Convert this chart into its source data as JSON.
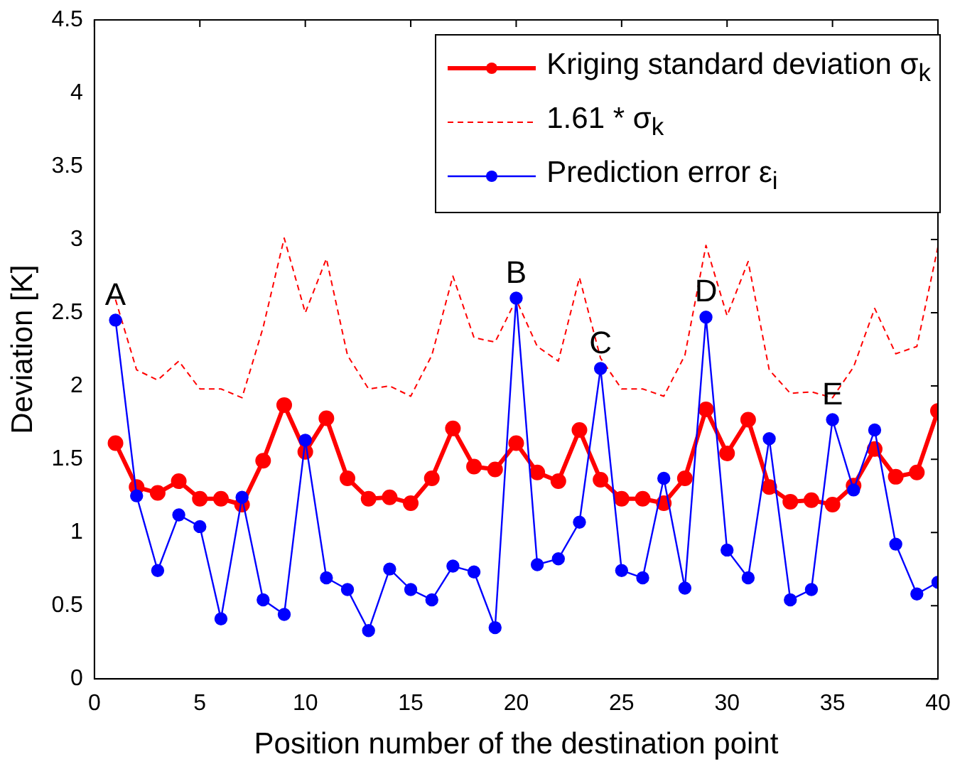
{
  "chart_data": {
    "type": "line",
    "xlabel": "Position number of the destination point",
    "ylabel": "Deviation [K]",
    "x": [
      1,
      2,
      3,
      4,
      5,
      6,
      7,
      8,
      9,
      10,
      11,
      12,
      13,
      14,
      15,
      16,
      17,
      18,
      19,
      20,
      21,
      22,
      23,
      24,
      25,
      26,
      27,
      28,
      29,
      30,
      31,
      32,
      33,
      34,
      35,
      36,
      37,
      38,
      39,
      40
    ],
    "series": [
      {
        "name": "Kriging standard deviation σ$_{k}$",
        "color": "#ff0000",
        "marker": "circle",
        "line_style": "solid",
        "values": [
          1.61,
          1.31,
          1.27,
          1.35,
          1.23,
          1.23,
          1.19,
          1.49,
          1.87,
          1.55,
          1.78,
          1.37,
          1.23,
          1.24,
          1.2,
          1.37,
          1.71,
          1.45,
          1.43,
          1.61,
          1.41,
          1.35,
          1.7,
          1.36,
          1.23,
          1.23,
          1.2,
          1.37,
          1.84,
          1.54,
          1.77,
          1.31,
          1.21,
          1.22,
          1.19,
          1.32,
          1.57,
          1.38,
          1.41,
          1.83
        ]
      },
      {
        "name": "1.61 * σ$_{k}$",
        "color": "#ff0000",
        "marker": "none",
        "line_style": "dashed",
        "values": [
          2.59,
          2.11,
          2.04,
          2.17,
          1.98,
          1.98,
          1.92,
          2.4,
          3.01,
          2.5,
          2.87,
          2.21,
          1.98,
          2.0,
          1.93,
          2.21,
          2.75,
          2.33,
          2.3,
          2.59,
          2.27,
          2.17,
          2.74,
          2.19,
          1.98,
          1.98,
          1.93,
          2.21,
          2.96,
          2.48,
          2.85,
          2.11,
          1.95,
          1.96,
          1.92,
          2.13,
          2.53,
          2.22,
          2.27,
          2.95
        ]
      },
      {
        "name": "Prediction error ε$_{i}$",
        "color": "#0000ff",
        "marker": "circle",
        "line_style": "solid",
        "values": [
          2.45,
          1.25,
          0.74,
          1.12,
          1.04,
          0.41,
          1.24,
          0.54,
          0.44,
          1.63,
          0.69,
          0.61,
          0.33,
          0.75,
          0.61,
          0.54,
          0.77,
          0.73,
          0.35,
          2.6,
          0.78,
          0.82,
          1.07,
          2.12,
          0.74,
          0.69,
          1.37,
          0.62,
          2.47,
          0.88,
          0.69,
          1.64,
          0.54,
          0.61,
          1.77,
          1.29,
          1.7,
          0.92,
          0.58,
          0.66
        ]
      }
    ],
    "annotations": [
      {
        "text": "A",
        "x": 1,
        "y": 2.45
      },
      {
        "text": "B",
        "x": 20,
        "y": 2.6
      },
      {
        "text": "C",
        "x": 24,
        "y": 2.12
      },
      {
        "text": "D",
        "x": 29,
        "y": 2.47
      },
      {
        "text": "E",
        "x": 35,
        "y": 1.77
      }
    ],
    "xlim": [
      0,
      40
    ],
    "xticks": [
      0,
      5,
      10,
      15,
      20,
      25,
      30,
      35,
      40
    ],
    "ylim": [
      0,
      4.5
    ],
    "yticks": [
      0,
      0.5,
      1,
      1.5,
      2,
      2.5,
      3,
      3.5,
      4,
      4.5
    ],
    "grid": false,
    "legend": "top right"
  }
}
